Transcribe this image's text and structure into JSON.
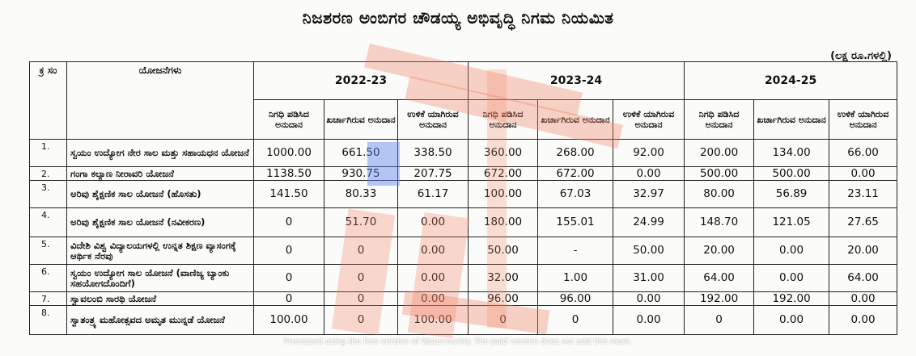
{
  "title": "ನಿಜಶರಣ ಅಂಬಿಗರ ಚೌಡಯ್ಯ ಅಭಿವೃದ್ಧಿ ನಿಗಮ ನಿಯಮಿತ",
  "unit": "(ಲಕ್ಷ ರೂ.ಗಳಲ್ಲಿ)",
  "table": {
    "header": {
      "sn": "ಕ್ರ ಸಂ",
      "scheme": "ಯೋಜನೆಗಳು",
      "years": [
        "2022-23",
        "2023-24",
        "2024-25"
      ],
      "sub": [
        "ನಿಗಧಿ ಪಡಿಸಿದ ಅನುದಾನ",
        "ಖರ್ಚಾಗಿರುವ ಅನುದಾನ",
        "ಉಳಿಕೆ ಯಾಗಿರುವ ಅನುದಾನ"
      ]
    },
    "rows": [
      {
        "sn": "1.",
        "name": "ಸ್ವಯಂ ಉದ್ಯೋಗ ನೇರ ಸಾಲ ಮತ್ತು ಸಹಾಯಧನ ಯೋಜನೆ",
        "v": [
          "1000.00",
          "661.50",
          "338.50",
          "360.00",
          "268.00",
          "92.00",
          "200.00",
          "134.00",
          "66.00"
        ]
      },
      {
        "sn": "2.",
        "name": "ಗಂಗಾ ಕಲ್ಯಾಣ ನೀರಾವರಿ ಯೋಜನೆ",
        "v": [
          "1138.50",
          "930.75",
          "207.75",
          "672.00",
          "672.00",
          "0.00",
          "500.00",
          "500.00",
          "0.00"
        ]
      },
      {
        "sn": "3.",
        "name": "ಅರಿವು ಶೈಕ್ಷಣಿಕ ಸಾಲ ಯೋಜನೆ (ಹೊಸತು)",
        "v": [
          "141.50",
          "80.33",
          "61.17",
          "100.00",
          "67.03",
          "32.97",
          "80.00",
          "56.89",
          "23.11"
        ]
      },
      {
        "sn": "4.",
        "name": "ಅರಿವು ಶೈಕ್ಷಣಿಕ ಸಾಲ ಯೋಜನೆ (ನವೀಕರಣ)",
        "v": [
          "0",
          "51.70",
          "0.00",
          "180.00",
          "155.01",
          "24.99",
          "148.70",
          "121.05",
          "27.65"
        ]
      },
      {
        "sn": "5.",
        "name": "ವಿದೇಶಿ ವಿಶ್ವ ವಿದ್ಯಾಲಯಗಳಲ್ಲಿ ಉನ್ನತ ಶಿಕ್ಷಣ ವ್ಯಾಸಂಗಕ್ಕೆ ಆರ್ಥಿಕ ನೆರವು",
        "v": [
          "0",
          "0",
          "0.00",
          "50.00",
          "-",
          "50.00",
          "20.00",
          "0.00",
          "20.00"
        ]
      },
      {
        "sn": "6.",
        "name": "ಸ್ವಯಂ ಉದ್ಯೋಗ ಸಾಲ ಯೋಜನೆ (ವಾಣಿಜ್ಯ ಬ್ಯಾಂಕು ಸಹಯೋಗದೊಂದಿಗೆ)",
        "v": [
          "0",
          "0",
          "0.00",
          "32.00",
          "1.00",
          "31.00",
          "64.00",
          "0.00",
          "64.00"
        ]
      },
      {
        "sn": "7.",
        "name": "ಸ್ವಾವಲಂಬಿ ಸಾರಥಿ ಯೋಜನೆ",
        "v": [
          "0",
          "0",
          "0.00",
          "96.00",
          "96.00",
          "0.00",
          "192.00",
          "192.00",
          "0.00"
        ]
      },
      {
        "sn": "8.",
        "name": "ಸ್ವಾತಂತ್ರ್ಯ ಮಹೋತ್ಸವದ ಅಮೃತ ಮುನ್ನಡೆ ಯೋಜನೆ",
        "v": [
          "100.00",
          "0",
          "100.00",
          "0",
          "0",
          "0.00",
          "0",
          "0.00",
          "0.00"
        ]
      }
    ]
  },
  "watermark": "Processed using the free version of Watermarkly. The paid version does not add this mark.",
  "overlay_colors": {
    "red": "#f2a38c",
    "blue": "#7d9cf0"
  }
}
